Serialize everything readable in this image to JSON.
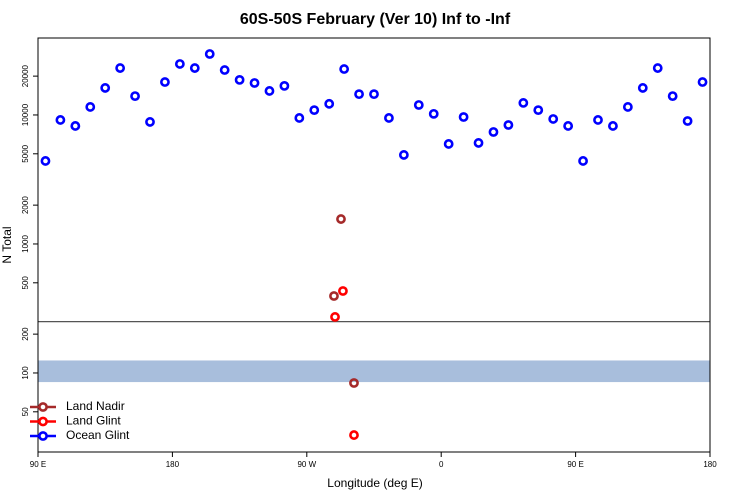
{
  "chart_data": {
    "type": "scatter",
    "title": "60S-50S February (Ver 10)   Inf to -Inf",
    "x_label": "Longitude (deg E)",
    "y_label": "N Total",
    "xlim": [
      90,
      540
    ],
    "xticks": [
      {
        "value": 90,
        "label": "90 E"
      },
      {
        "value": 180,
        "label": "180"
      },
      {
        "value": 270,
        "label": "90 W"
      },
      {
        "value": 360,
        "label": "0"
      },
      {
        "value": 450,
        "label": "90 E"
      },
      {
        "value": 540,
        "label": "180"
      }
    ],
    "ylim": [
      24.4,
      39500
    ],
    "log_y": true,
    "yticks": [
      50,
      100,
      200,
      500,
      1000,
      2000,
      5000,
      10000,
      20000
    ],
    "hline": 250,
    "band": [
      85,
      125
    ],
    "band_color": "#a8bedc",
    "legend": "bottom-left",
    "series": [
      {
        "name": "Land Nadir",
        "color": "#a52a2a",
        "x": [
          292.9,
          288.2,
          301.6
        ],
        "values": [
          1560,
          395,
          83.6
        ]
      },
      {
        "name": "Land Glint",
        "color": "#ff0000",
        "x": [
          294.2,
          288.9,
          301.6
        ],
        "values": [
          432,
          272,
          33
        ]
      },
      {
        "name": "Ocean Glint",
        "color": "#0000ff",
        "x": [
          95,
          105,
          115,
          125,
          135,
          145,
          155,
          165,
          175,
          185,
          195,
          205,
          215,
          225,
          235,
          245,
          255,
          265,
          275,
          285,
          295,
          305,
          315,
          325,
          335,
          345,
          355,
          365,
          375,
          385,
          395,
          405,
          415,
          425,
          435,
          445,
          455,
          465,
          475,
          485,
          495,
          505,
          515,
          525,
          535
        ],
        "values": [
          4400,
          9150,
          8220,
          11540,
          16200,
          23100,
          14000,
          8830,
          18000,
          24850,
          23100,
          29700,
          22300,
          18700,
          17700,
          15350,
          16800,
          9480,
          10900,
          12200,
          22700,
          14500,
          14500,
          9480,
          4900,
          11950,
          10200,
          5960,
          9640,
          6070,
          7380,
          8360,
          12400,
          10900,
          9310,
          8220,
          4400,
          9150,
          8220,
          11540,
          16200,
          23100,
          14000,
          8980,
          18000
        ]
      }
    ]
  }
}
